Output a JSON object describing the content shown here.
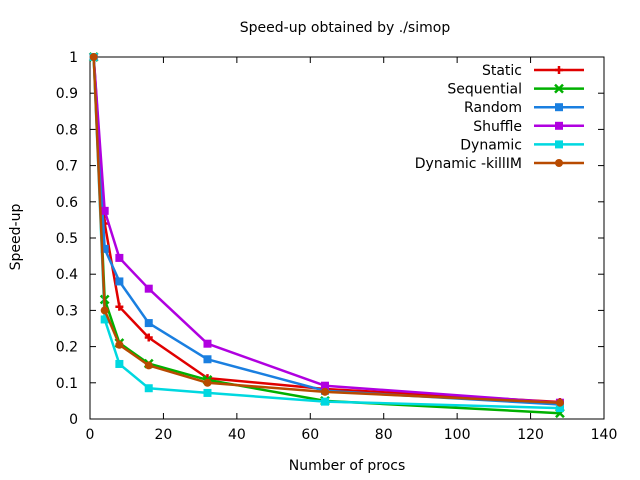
{
  "chart_data": {
    "type": "line",
    "title": "Speed-up obtained by ./simop",
    "xlabel": "Number of procs",
    "ylabel": "Speed-up",
    "xlim": [
      0,
      140
    ],
    "ylim": [
      0,
      1
    ],
    "xticks": [
      "0",
      "20",
      "40",
      "60",
      "80",
      "100",
      "120",
      "140"
    ],
    "yticks": [
      "0",
      "0.1",
      "0.2",
      "0.3",
      "0.4",
      "0.5",
      "0.6",
      "0.7",
      "0.8",
      "0.9",
      "1"
    ],
    "grid": false,
    "legend_position": "top-right",
    "x": [
      1,
      4,
      8,
      16,
      32,
      64,
      128
    ],
    "series": [
      {
        "name": "Static",
        "color": "#e00000",
        "marker": "plus",
        "values": [
          1.0,
          0.54,
          0.31,
          0.225,
          0.113,
          0.083,
          0.047
        ]
      },
      {
        "name": "Sequential",
        "color": "#00b000",
        "marker": "cross",
        "values": [
          1.0,
          0.33,
          0.21,
          0.153,
          0.108,
          0.05,
          0.016
        ]
      },
      {
        "name": "Random",
        "color": "#1a7fe0",
        "marker": "square",
        "values": [
          1.0,
          0.47,
          0.38,
          0.265,
          0.165,
          0.078,
          0.04
        ]
      },
      {
        "name": "Shuffle",
        "color": "#b000e0",
        "marker": "square",
        "values": [
          1.0,
          0.575,
          0.445,
          0.36,
          0.208,
          0.092,
          0.045
        ]
      },
      {
        "name": "Dynamic",
        "color": "#00d8e0",
        "marker": "square",
        "values": [
          1.0,
          0.275,
          0.152,
          0.085,
          0.072,
          0.048,
          0.03
        ]
      },
      {
        "name": "Dynamic -killIM",
        "color": "#b84a00",
        "marker": "circle",
        "values": [
          1.0,
          0.3,
          0.205,
          0.148,
          0.1,
          0.075,
          0.045
        ]
      }
    ]
  }
}
